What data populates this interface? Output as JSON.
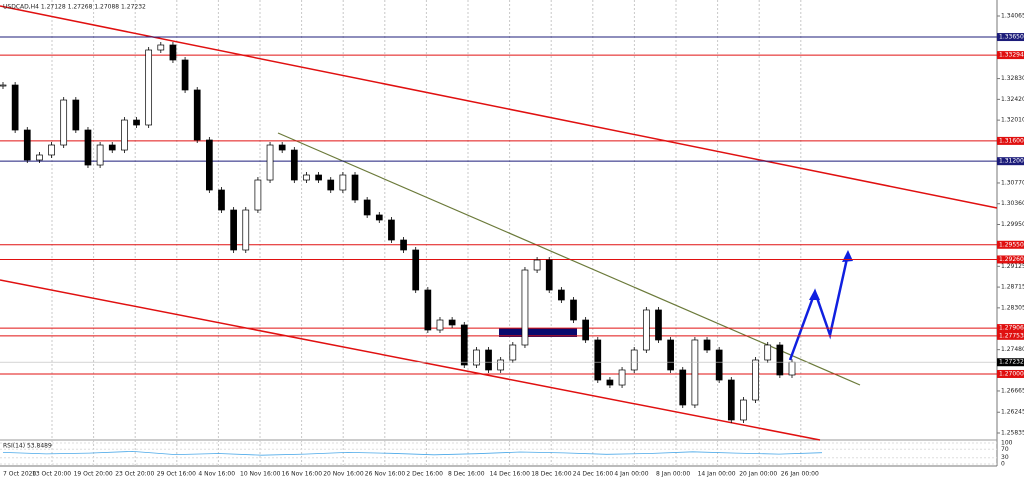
{
  "chart_data": {
    "type": "candlestick",
    "title": "USDCAD,H4  1.27128 1.27268 1.27088 1.27232",
    "categories": [
      "7 Oct 2020",
      "13 Oct 20:00",
      "19 Oct 20:00",
      "23 Oct 20:00",
      "29 Oct 16:00",
      "4 Nov 16:00",
      "10 Nov 16:00",
      "16 Nov 16:00",
      "20 Nov 16:00",
      "26 Nov 16:00",
      "2 Dec 16:00",
      "8 Dec 16:00",
      "14 Dec 16:00",
      "18 Dec 16:00",
      "24 Dec 16:00",
      "4 Jan 00:00",
      "8 Jan 00:00",
      "14 Jan 00:00",
      "20 Jan 00:00",
      "26 Jan 00:00"
    ],
    "closes": [
      1.32703,
      1.31815,
      1.31223,
      1.31322,
      1.31519,
      1.32407,
      1.31815,
      1.31124,
      1.31519,
      1.3142,
      1.32012,
      1.31914,
      1.33394,
      1.33493,
      1.33197,
      1.32605,
      1.31618,
      1.30631,
      1.30236,
      1.29447,
      1.30236,
      1.30828,
      1.31519,
      1.3142,
      1.30828,
      1.30927,
      1.30828,
      1.30631,
      1.30927,
      1.30434,
      1.30138,
      1.30039,
      1.29644,
      1.29447,
      1.28657,
      1.27868,
      1.28065,
      1.27967,
      1.27177,
      1.27473,
      1.27079,
      1.27276,
      1.27572,
      1.29052,
      1.29249,
      1.28657,
      1.2846,
      1.28065,
      1.27671,
      1.26881,
      1.26782,
      1.27079,
      1.27473,
      1.28263,
      1.27671,
      1.27079,
      1.26388,
      1.27671,
      1.27473,
      1.26881,
      1.26092,
      1.26486,
      1.27276,
      1.27572,
      1.2698,
      1.27232
    ],
    "ylim": [
      1.25697,
      1.34381
    ],
    "yticks": [
      1.34065,
      {
        "value": 1.3283,
        "label": "1.32830"
      },
      {
        "value": 1.3242,
        "label": "1.32420"
      },
      {
        "value": 1.3201,
        "label": "1.32010"
      },
      {
        "value": 1.3077,
        "label": "1.30770"
      },
      {
        "value": 1.3036,
        "label": "1.30360"
      },
      {
        "value": 1.2995,
        "label": "1.29950"
      },
      1.29125,
      1.28715,
      1.28305,
      {
        "value": 1.2748,
        "label": "1.27480"
      },
      1.26665,
      1.26245,
      1.25835
    ],
    "levels": [
      {
        "value": 1.3365,
        "label": "1.33650",
        "color": "#1c1c7a"
      },
      {
        "value": 1.33294,
        "label": "1.33294",
        "color": "#e01010"
      },
      {
        "value": 1.316,
        "label": "1.31600",
        "color": "#e01010"
      },
      {
        "value": 1.312,
        "label": "1.31200",
        "color": "#1c1c7a"
      },
      {
        "value": 1.2955,
        "label": "1.29550",
        "color": "#e01010"
      },
      {
        "value": 1.2926,
        "label": "1.29260",
        "color": "#e01010"
      },
      {
        "value": 1.27906,
        "label": "1.27906",
        "color": "#e01010"
      },
      {
        "value": 1.27753,
        "label": "1.27753",
        "color": "#e01010"
      },
      {
        "value": 1.27,
        "label": "1.27000",
        "color": "#e01010"
      }
    ],
    "current": {
      "value": 1.27232,
      "label": "1.27232"
    },
    "rsi": {
      "title": "RSI(14) 53.8489",
      "values": [
        55,
        48,
        52,
        60,
        45,
        50,
        42,
        47,
        55,
        51,
        44,
        49,
        57,
        53,
        46,
        50,
        58,
        52,
        47,
        53.8489
      ],
      "ylim": [
        0,
        100
      ],
      "yticks": [
        100,
        70,
        30,
        0
      ]
    }
  }
}
